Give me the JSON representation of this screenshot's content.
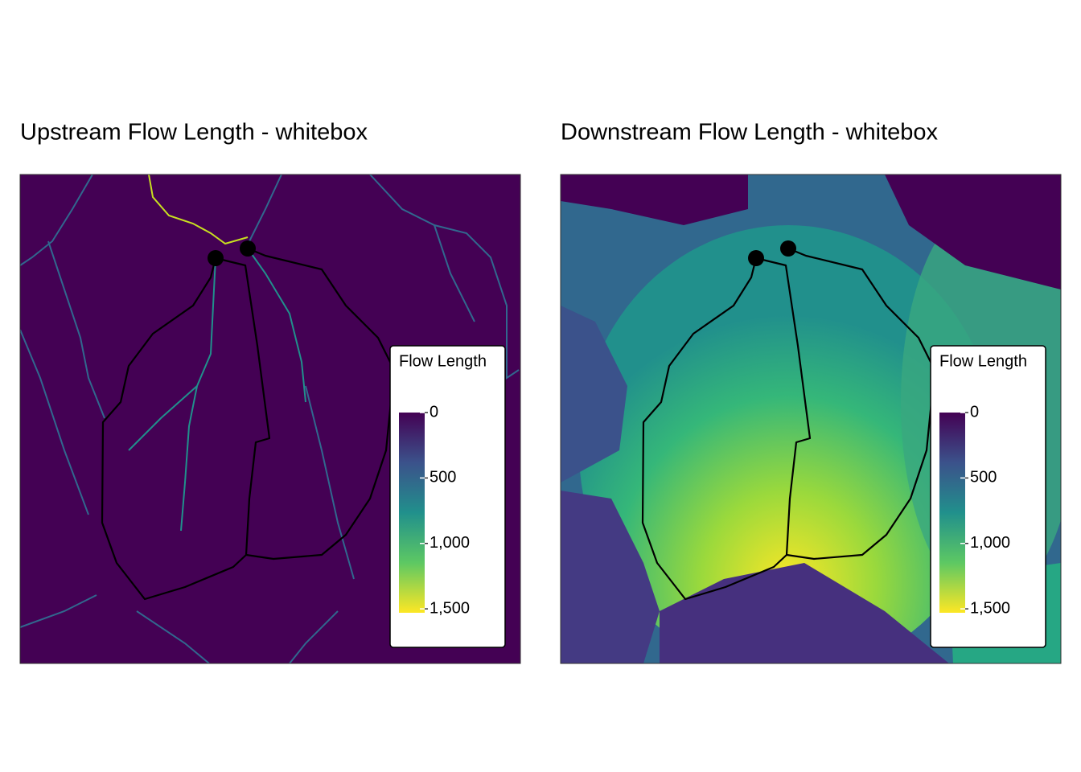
{
  "panels": [
    {
      "title": "Upstream Flow Length - whitebox",
      "legend": {
        "title": "Flow Length",
        "lim": [
          0,
          1530
        ],
        "ticks": [
          0,
          500,
          {
            "value": 1000,
            "label": "1,000"
          },
          {
            "value": 1500,
            "label": "1,500"
          }
        ]
      }
    },
    {
      "title": "Downstream Flow Length - whitebox",
      "legend": {
        "title": "Flow Length",
        "lim": [
          0,
          1530
        ],
        "ticks": [
          0,
          500,
          {
            "value": 1000,
            "label": "1,000"
          },
          {
            "value": 1500,
            "label": "1,500"
          }
        ]
      }
    }
  ]
}
